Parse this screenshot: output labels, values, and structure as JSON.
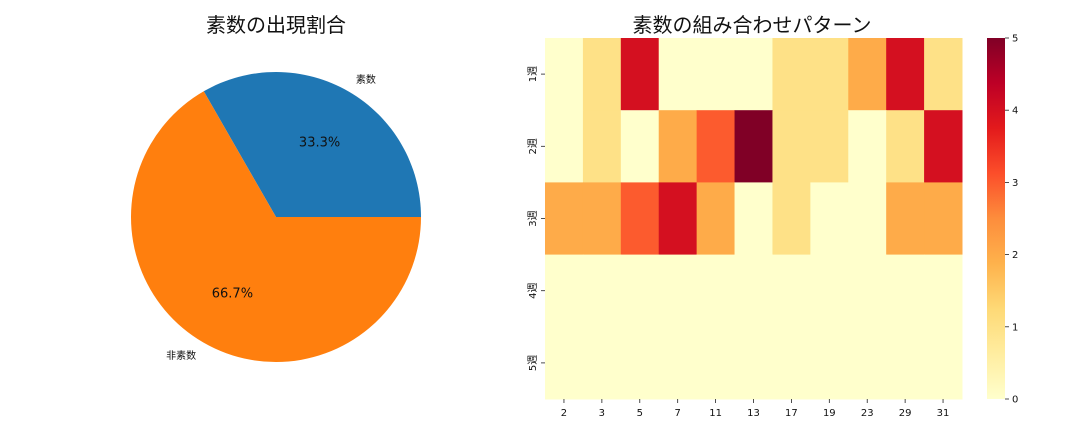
{
  "chart_data": [
    {
      "type": "pie",
      "title": "素数の出現割合",
      "labels": [
        "素数",
        "非素数"
      ],
      "values": [
        33.3,
        66.7
      ],
      "value_labels": [
        "33.3%",
        "66.7%"
      ],
      "colors": [
        "#1f77b4",
        "#ff7f0e"
      ],
      "start_angle_deg": 0,
      "direction": "counterclockwise"
    },
    {
      "type": "heatmap",
      "title": "素数の組み合わせパターン",
      "x": [
        "2",
        "3",
        "5",
        "7",
        "11",
        "13",
        "17",
        "19",
        "23",
        "29",
        "31"
      ],
      "y": [
        "1週",
        "2週",
        "3週",
        "4週",
        "5週"
      ],
      "values": [
        [
          0,
          1,
          4,
          0,
          0,
          0,
          1,
          1,
          2,
          4,
          1
        ],
        [
          0,
          1,
          0,
          2,
          3,
          5,
          1,
          1,
          0,
          1,
          4
        ],
        [
          2,
          2,
          3,
          4,
          2,
          0,
          1,
          0,
          0,
          2,
          2
        ],
        [
          0,
          0,
          0,
          0,
          0,
          0,
          0,
          0,
          0,
          0,
          0
        ],
        [
          0,
          0,
          0,
          0,
          0,
          0,
          0,
          0,
          0,
          0,
          0
        ]
      ],
      "colormap": "YlOrRd",
      "colorbar": {
        "min": 0,
        "max": 5,
        "ticks": [
          "0",
          "1",
          "2",
          "3",
          "4",
          "5"
        ]
      }
    }
  ]
}
